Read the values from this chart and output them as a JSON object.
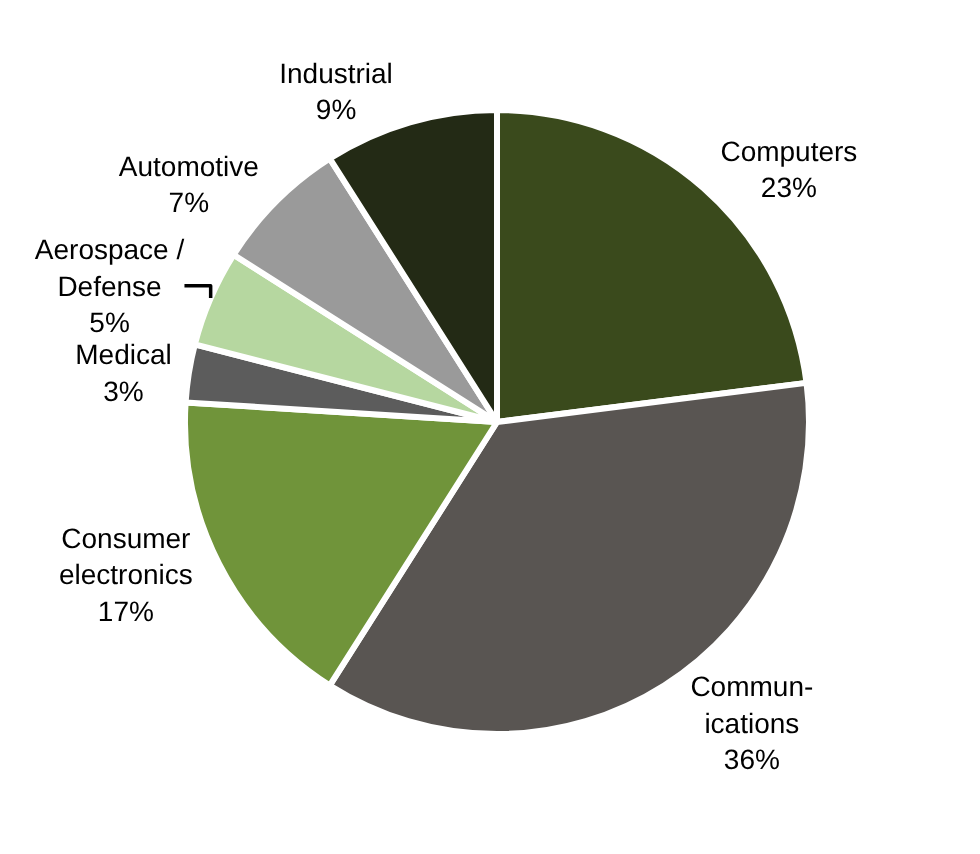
{
  "chart_data": {
    "type": "pie",
    "categories": [
      "Computers",
      "Commun-\nications",
      "Consumer\nelectronics",
      "Medical",
      "Aerospace /\nDefense",
      "Automotive",
      "Industrial"
    ],
    "values": [
      23,
      36,
      17,
      3,
      5,
      7,
      9
    ],
    "value_labels": [
      "23%",
      "36%",
      "17%",
      "3%",
      "5%",
      "7%",
      "9%"
    ],
    "colors": [
      "#3a4a1c",
      "#595552",
      "#70943a",
      "#5c5c5c",
      "#b6d7a0",
      "#9a9a9a",
      "#232a15"
    ],
    "legend": false
  }
}
